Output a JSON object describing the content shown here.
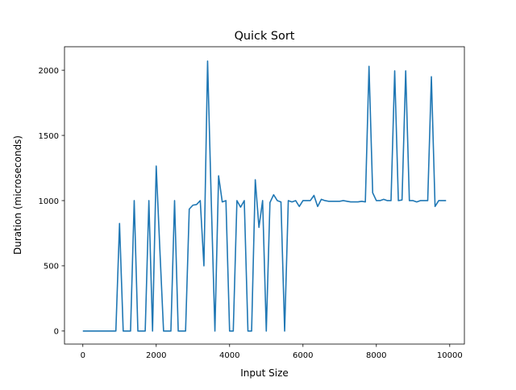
{
  "chart_data": {
    "type": "line",
    "title": "Quick Sort",
    "xlabel": "Input Size",
    "ylabel": "Duration (microseconds)",
    "xlim": [
      -500,
      10400
    ],
    "ylim": [
      -100,
      2180
    ],
    "x_ticks": [
      0,
      2000,
      4000,
      6000,
      8000,
      10000
    ],
    "y_ticks": [
      0,
      500,
      1000,
      1500,
      2000
    ],
    "grid": false,
    "line_color": "#1f77b4",
    "series": [
      {
        "x": [
          0,
          100,
          200,
          300,
          400,
          500,
          600,
          700,
          800,
          900,
          1000,
          1100,
          1200,
          1300,
          1400,
          1500,
          1600,
          1700,
          1800,
          1900,
          2000,
          2100,
          2200,
          2300,
          2400,
          2500,
          2600,
          2700,
          2800,
          2900,
          3000,
          3100,
          3200,
          3300,
          3400,
          3500,
          3600,
          3700,
          3800,
          3900,
          4000,
          4100,
          4200,
          4300,
          4400,
          4500,
          4600,
          4700,
          4800,
          4900,
          5000,
          5100,
          5200,
          5300,
          5400,
          5500,
          5600,
          5700,
          5800,
          5900,
          6000,
          6100,
          6200,
          6300,
          6400,
          6500,
          6600,
          6700,
          6800,
          6900,
          7000,
          7100,
          7200,
          7300,
          7400,
          7500,
          7600,
          7700,
          7800,
          7900,
          8000,
          8100,
          8200,
          8300,
          8400,
          8500,
          8600,
          8700,
          8800,
          8900,
          9000,
          9100,
          9200,
          9300,
          9400,
          9500,
          9600,
          9700,
          9800,
          9900
        ],
        "values": [
          0,
          0,
          0,
          0,
          0,
          0,
          0,
          0,
          0,
          0,
          825,
          0,
          0,
          0,
          1000,
          0,
          0,
          0,
          1000,
          0,
          1265,
          620,
          0,
          0,
          0,
          1000,
          0,
          0,
          0,
          935,
          965,
          970,
          1000,
          500,
          2070,
          1000,
          0,
          1190,
          990,
          1000,
          0,
          0,
          1000,
          950,
          1000,
          0,
          0,
          1160,
          795,
          1000,
          0,
          985,
          1045,
          1000,
          990,
          0,
          1000,
          990,
          1000,
          955,
          1000,
          1000,
          1000,
          1040,
          955,
          1010,
          1000,
          995,
          995,
          995,
          995,
          1000,
          995,
          990,
          990,
          990,
          995,
          990,
          2030,
          1060,
          1000,
          1000,
          1010,
          1000,
          1000,
          1995,
          1000,
          1005,
          1995,
          1000,
          1000,
          990,
          1000,
          1000,
          1000,
          1950,
          955,
          1000,
          1000,
          1000
        ]
      }
    ]
  }
}
